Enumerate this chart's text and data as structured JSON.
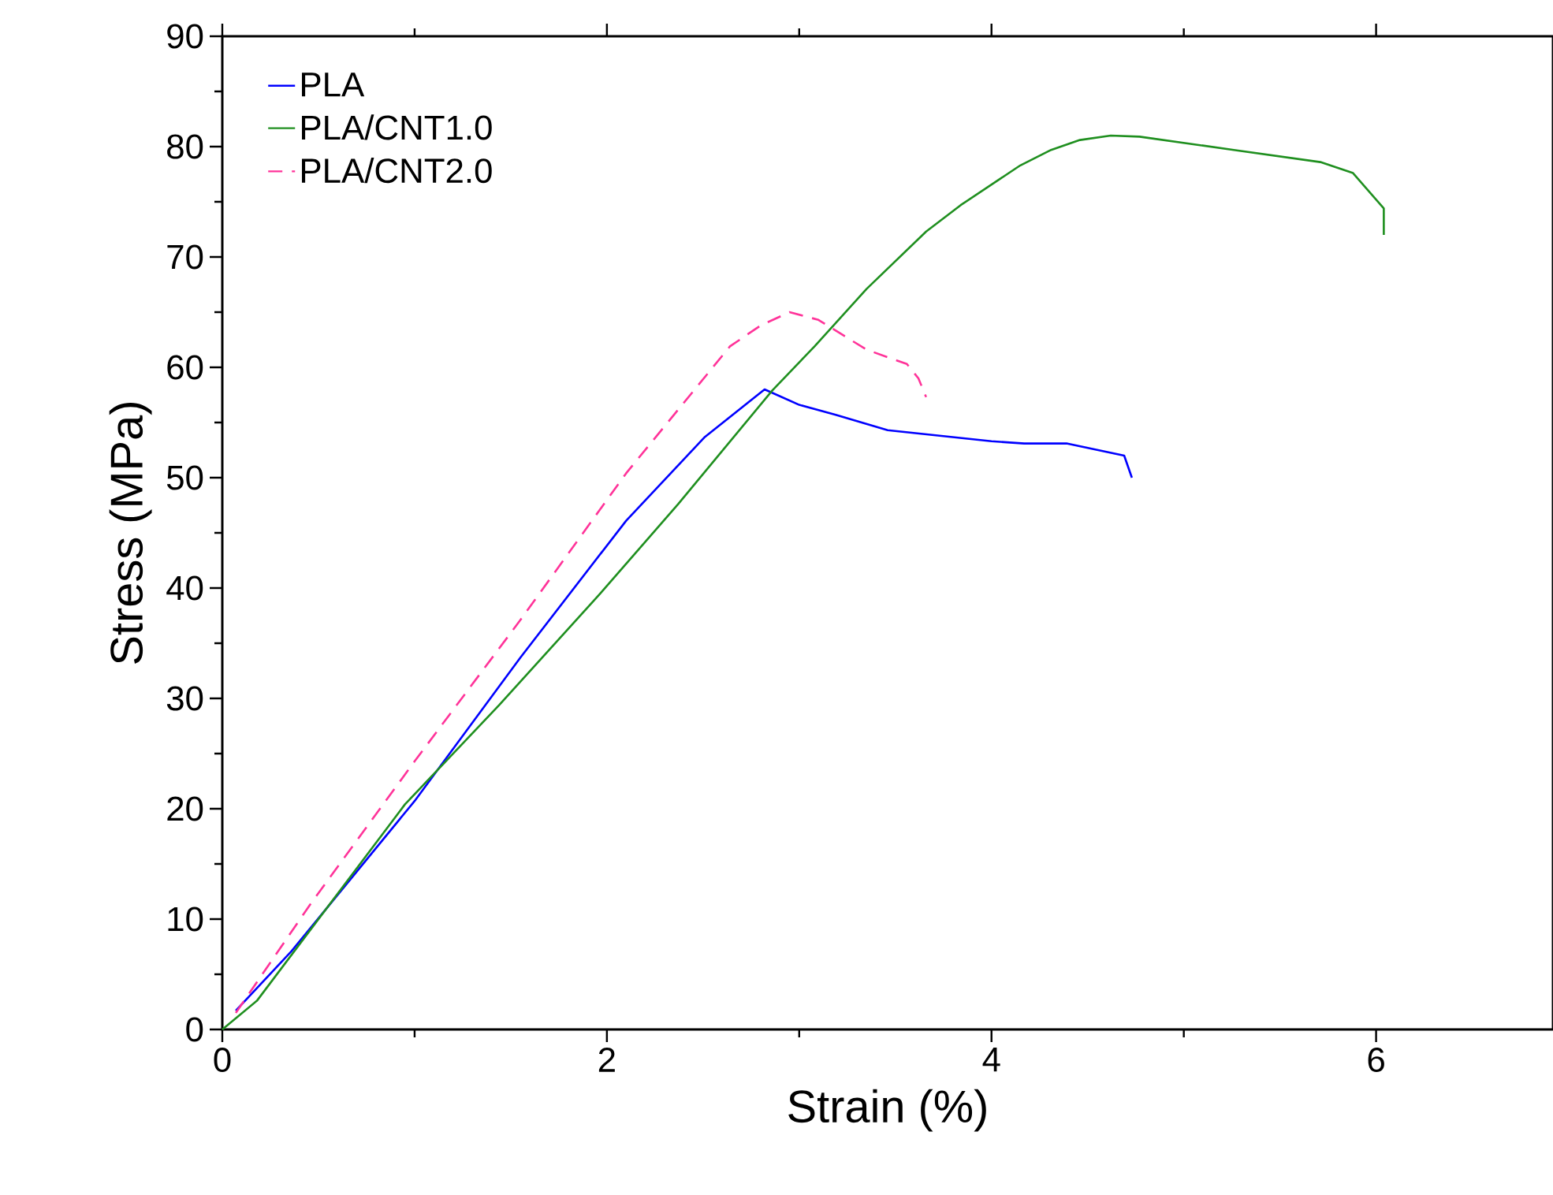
{
  "chart_data": {
    "type": "line",
    "xlabel": "Strain (%)",
    "ylabel": "Stress (MPa)",
    "xlim": [
      0,
      6.92
    ],
    "ylim": [
      0,
      90
    ],
    "xticks": [
      0,
      2,
      4,
      6
    ],
    "yticks": [
      0,
      10,
      20,
      30,
      40,
      50,
      60,
      70,
      80,
      90
    ],
    "legend": "top left",
    "grid": false,
    "series": [
      {
        "name": "PLA",
        "color": "#0000ff",
        "line_style": "solid",
        "x": [
          0.07,
          0.36,
          1.0,
          1.55,
          2.1,
          2.51,
          2.82,
          3.0,
          3.19,
          3.46,
          4.0,
          4.17,
          4.39,
          4.69,
          4.73
        ],
        "values": [
          1.7,
          7.1,
          20.7,
          33.7,
          46.1,
          53.7,
          58,
          56.6,
          55.7,
          54.3,
          53.3,
          53.1,
          53.1,
          52,
          50
        ]
      },
      {
        "name": "PLA/CNT1.0",
        "color": "#1f8f1f",
        "line_style": "solid",
        "x": [
          0,
          0.18,
          0.95,
          1.44,
          1.96,
          2.37,
          2.86,
          3.08,
          3.35,
          3.66,
          3.84,
          4.15,
          4.31,
          4.46,
          4.62,
          4.77,
          5.26,
          5.71,
          5.88,
          6.04,
          6.04
        ],
        "values": [
          0,
          2.6,
          20.4,
          29.4,
          39.4,
          47.6,
          57.9,
          61.9,
          67.1,
          72.3,
          74.7,
          78.3,
          79.7,
          80.6,
          81,
          80.9,
          79.7,
          78.6,
          77.6,
          74.4,
          72
        ]
      },
      {
        "name": "PLA/CNT2.0",
        "color": "#ff3399",
        "line_style": "dashed",
        "x": [
          0.07,
          0.46,
          1.0,
          1.55,
          2.1,
          2.64,
          2.8,
          2.95,
          3.1,
          3.35,
          3.56,
          3.62,
          3.66
        ],
        "values": [
          1.5,
          11.4,
          24.3,
          37.1,
          50.4,
          61.9,
          63.8,
          65,
          64.3,
          61.6,
          60.3,
          59,
          57.3
        ]
      }
    ]
  }
}
